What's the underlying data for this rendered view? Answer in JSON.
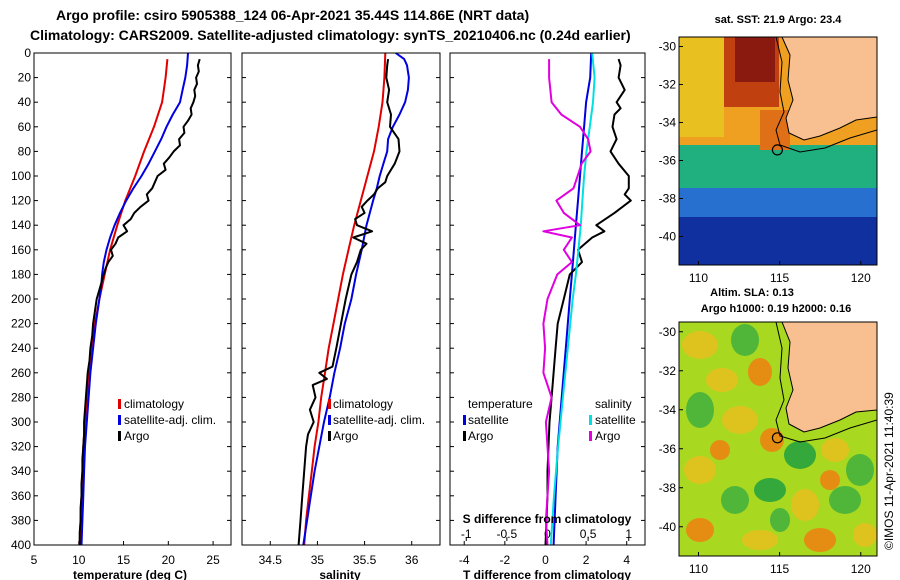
{
  "header": {
    "title_line1": "Argo profile: csiro 5905388_124 06-Apr-2021 35.44S 114.86E (NRT data)",
    "title_line2": "Climatology: CARS2009. Satellite-adjusted climatology: synTS_20210406.nc (0.24d earlier)"
  },
  "colors": {
    "climatology": "#e00000",
    "satellite": "#0000e0",
    "argo": "#000000",
    "satellite_s": "#00e0e0",
    "argo_s": "#e000e0",
    "land": "#f8c090"
  },
  "chart_data": [
    {
      "id": "temperature",
      "type": "line",
      "xlabel": "temperature (deg C)",
      "ylabel": "",
      "xlim": [
        5,
        27
      ],
      "ylim": [
        400,
        0
      ],
      "xticks": [
        "5",
        "10",
        "15",
        "20",
        "25"
      ],
      "xtick_values": [
        5,
        10,
        15,
        20,
        25
      ],
      "yticks": [
        "0",
        "20",
        "40",
        "60",
        "80",
        "100",
        "120",
        "140",
        "160",
        "180",
        "200",
        "220",
        "240",
        "260",
        "280",
        "300",
        "320",
        "340",
        "360",
        "380",
        "400"
      ],
      "ytick_values": [
        0,
        20,
        40,
        60,
        80,
        100,
        120,
        140,
        160,
        180,
        200,
        220,
        240,
        260,
        280,
        300,
        320,
        340,
        360,
        380,
        400
      ],
      "legend": [
        "climatology",
        "satellite-adj. clim.",
        "Argo"
      ],
      "series": [
        {
          "name": "climatology",
          "color": "#e00000",
          "depth": [
            5,
            20,
            40,
            60,
            80,
            100,
            120,
            140,
            160,
            180,
            200,
            220,
            240,
            260,
            280,
            300,
            320,
            340,
            360,
            380,
            400
          ],
          "values": [
            19.9,
            19.7,
            19.3,
            18.4,
            17.3,
            16.3,
            15.2,
            14.3,
            13.5,
            12.9,
            12.3,
            11.8,
            11.4,
            11.1,
            10.9,
            10.7,
            10.5,
            10.4,
            10.3,
            10.2,
            10.1
          ]
        },
        {
          "name": "satellite-adj. clim.",
          "color": "#0000e0",
          "depth": [
            0,
            10,
            20,
            30,
            40,
            50,
            60,
            70,
            80,
            90,
            100,
            110,
            120,
            130,
            140,
            150,
            160,
            170,
            180,
            190,
            200,
            220,
            240,
            260,
            280,
            300,
            320,
            340,
            360,
            380,
            400
          ],
          "values": [
            22.2,
            22.1,
            21.9,
            21.6,
            21.3,
            20.5,
            19.8,
            19.2,
            18.5,
            17.8,
            17.0,
            16.1,
            15.3,
            14.6,
            14.0,
            13.5,
            13.1,
            12.8,
            12.6,
            12.5,
            12.3,
            11.9,
            11.6,
            11.3,
            11.1,
            10.9,
            10.7,
            10.6,
            10.5,
            10.4,
            10.3
          ]
        },
        {
          "name": "Argo",
          "color": "#000000",
          "depth": [
            5,
            10,
            15,
            20,
            25,
            30,
            35,
            40,
            45,
            50,
            55,
            60,
            65,
            70,
            75,
            80,
            85,
            90,
            95,
            100,
            105,
            110,
            115,
            120,
            125,
            130,
            135,
            140,
            145,
            150,
            155,
            160,
            165,
            170,
            175,
            180,
            190,
            200,
            210,
            220,
            230,
            240,
            250,
            260,
            270,
            280,
            290,
            300,
            310,
            320,
            330,
            340,
            350,
            360,
            370,
            380,
            390,
            400
          ],
          "values": [
            23.5,
            23.3,
            23.4,
            23.1,
            23.2,
            22.9,
            23.0,
            22.8,
            22.5,
            22.6,
            22.2,
            21.7,
            21.8,
            21.2,
            21.3,
            20.6,
            20.1,
            19.5,
            19.7,
            18.8,
            18.5,
            18.2,
            17.6,
            17.8,
            16.9,
            16.2,
            15.8,
            15.0,
            15.4,
            14.4,
            14.1,
            13.6,
            13.8,
            13.3,
            13.0,
            12.8,
            12.4,
            12.0,
            11.8,
            11.6,
            11.5,
            11.3,
            11.2,
            11.0,
            10.9,
            10.8,
            10.7,
            10.6,
            10.6,
            10.5,
            10.4,
            10.4,
            10.3,
            10.3,
            10.2,
            10.2,
            10.1,
            10.1
          ]
        }
      ]
    },
    {
      "id": "salinity",
      "type": "line",
      "xlabel": "salinity",
      "ylabel": "",
      "xlim": [
        34.2,
        36.3
      ],
      "ylim": [
        400,
        0
      ],
      "xticks": [
        "34.5",
        "35",
        "35.5",
        "36"
      ],
      "xtick_values": [
        34.5,
        35,
        35.5,
        36
      ],
      "legend": [
        "climatology",
        "satellite-adj. clim.",
        "Argo"
      ],
      "series": [
        {
          "name": "climatology",
          "color": "#e00000",
          "depth": [
            0,
            20,
            40,
            60,
            80,
            100,
            120,
            140,
            160,
            180,
            200,
            220,
            240,
            260,
            280,
            300,
            320,
            340,
            360,
            380,
            400
          ],
          "values": [
            35.72,
            35.71,
            35.69,
            35.65,
            35.6,
            35.53,
            35.46,
            35.39,
            35.33,
            35.27,
            35.22,
            35.17,
            35.12,
            35.08,
            35.04,
            35.01,
            34.97,
            34.94,
            34.91,
            34.88,
            34.86
          ]
        },
        {
          "name": "satellite-adj. clim.",
          "color": "#0000e0",
          "depth": [
            0,
            5,
            10,
            20,
            30,
            40,
            50,
            60,
            70,
            80,
            90,
            100,
            110,
            120,
            140,
            160,
            180,
            200,
            220,
            240,
            260,
            280,
            300,
            320,
            340,
            360,
            380,
            400
          ],
          "values": [
            35.83,
            35.92,
            35.95,
            35.97,
            35.96,
            35.93,
            35.87,
            35.8,
            35.75,
            35.74,
            35.7,
            35.66,
            35.63,
            35.59,
            35.52,
            35.47,
            35.41,
            35.36,
            35.29,
            35.24,
            35.18,
            35.13,
            35.07,
            35.02,
            34.97,
            34.93,
            34.89,
            34.85
          ]
        },
        {
          "name": "Argo",
          "color": "#000000",
          "depth": [
            5,
            10,
            20,
            30,
            40,
            50,
            60,
            70,
            80,
            90,
            100,
            105,
            110,
            115,
            120,
            125,
            130,
            135,
            140,
            145,
            150,
            155,
            160,
            170,
            180,
            200,
            220,
            240,
            255,
            260,
            265,
            270,
            280,
            290,
            300,
            310,
            320,
            340,
            360,
            380,
            400
          ],
          "values": [
            35.75,
            35.74,
            35.73,
            35.76,
            35.74,
            35.78,
            35.77,
            35.86,
            35.87,
            35.82,
            35.74,
            35.72,
            35.64,
            35.6,
            35.53,
            35.47,
            35.5,
            35.4,
            35.42,
            35.58,
            35.38,
            35.52,
            35.46,
            35.42,
            35.36,
            35.3,
            35.25,
            35.2,
            35.16,
            35.02,
            35.1,
            34.95,
            34.98,
            34.92,
            34.96,
            34.9,
            34.88,
            34.86,
            34.84,
            34.82,
            34.8
          ]
        }
      ]
    },
    {
      "id": "difference",
      "type": "line",
      "xlabel": "T difference from climatology",
      "xlabel_top": "S difference from climatology",
      "xlim": [
        -4.7,
        4.9
      ],
      "xlim_top": [
        -1.2,
        1.2
      ],
      "ylim": [
        400,
        0
      ],
      "xticks": [
        "-4",
        "-2",
        "0",
        "2",
        "4"
      ],
      "xtick_values": [
        -4,
        -2,
        0,
        2,
        4
      ],
      "xticks_top": [
        "-1",
        "-0.5",
        "0",
        "0.5",
        "1"
      ],
      "xtick_values_top": [
        -1,
        -0.5,
        0,
        0.5,
        1
      ],
      "legend_left_title": "temperature",
      "legend_right_title": "salinity",
      "legend": [
        "satellite",
        "Argo"
      ],
      "series": [
        {
          "name": "temperature satellite",
          "color": "#0000e0",
          "axis": "bottom",
          "depth": [
            0,
            20,
            40,
            60,
            80,
            100,
            120,
            140,
            160,
            180,
            200,
            240,
            280,
            320,
            360,
            400
          ],
          "values": [
            2.25,
            2.2,
            2.0,
            1.9,
            1.8,
            1.7,
            1.6,
            1.5,
            1.4,
            1.3,
            1.2,
            1.0,
            0.8,
            0.6,
            0.5,
            0.4
          ]
        },
        {
          "name": "temperature Argo",
          "color": "#000000",
          "axis": "bottom",
          "depth": [
            5,
            10,
            20,
            30,
            40,
            45,
            50,
            60,
            70,
            80,
            90,
            100,
            110,
            115,
            120,
            130,
            140,
            145,
            150,
            160,
            170,
            180,
            200,
            220,
            240,
            260,
            280,
            300,
            320,
            340,
            360,
            380,
            400
          ],
          "values": [
            3.6,
            3.7,
            3.6,
            3.9,
            3.5,
            3.7,
            3.4,
            3.3,
            3.5,
            3.2,
            3.6,
            4.1,
            4.1,
            3.9,
            4.2,
            3.4,
            2.5,
            2.9,
            2.3,
            1.6,
            1.8,
            1.2,
            0.9,
            0.6,
            0.5,
            0.4,
            0.3,
            0.2,
            0.15,
            0.1,
            0.1,
            0.05,
            0.0
          ]
        },
        {
          "name": "salinity satellite",
          "color": "#00e0e0",
          "axis": "top",
          "depth": [
            0,
            20,
            40,
            60,
            80,
            100,
            120,
            140,
            160,
            180,
            200,
            240,
            280,
            320,
            360,
            400
          ],
          "values": [
            0.55,
            0.58,
            0.56,
            0.52,
            0.48,
            0.45,
            0.43,
            0.41,
            0.38,
            0.35,
            0.31,
            0.25,
            0.19,
            0.13,
            0.08,
            0.04
          ]
        },
        {
          "name": "salinity Argo",
          "color": "#e000e0",
          "axis": "top",
          "depth": [
            5,
            20,
            40,
            50,
            60,
            70,
            80,
            90,
            100,
            110,
            120,
            130,
            140,
            145,
            150,
            160,
            170,
            180,
            200,
            220,
            240,
            260,
            280,
            300,
            320,
            340,
            360,
            380,
            400
          ],
          "values": [
            0.02,
            0.02,
            0.05,
            0.17,
            0.4,
            0.5,
            0.53,
            0.42,
            0.37,
            0.32,
            0.11,
            0.2,
            0.4,
            -0.05,
            0.3,
            0.2,
            0.3,
            0.12,
            0.0,
            -0.05,
            -0.03,
            -0.05,
            0.05,
            -0.02,
            0.0,
            0.02,
            0.0,
            -0.02,
            0.0
          ]
        }
      ]
    },
    {
      "id": "sst-map",
      "type": "heatmap",
      "title": "sat. SST: 21.9 Argo: 23.4",
      "xlim": [
        108.8,
        121
      ],
      "ylim": [
        -41.5,
        -29.5
      ],
      "xticks": [
        "110",
        "115",
        "120"
      ],
      "xtick_values": [
        110,
        115,
        120
      ],
      "yticks": [
        "-30",
        "-32",
        "-34",
        "-36",
        "-38",
        "-40"
      ],
      "ytick_values": [
        -30,
        -32,
        -34,
        -36,
        -38,
        -40
      ],
      "marker": [
        114.86,
        -35.44
      ]
    },
    {
      "id": "sla-map",
      "type": "heatmap",
      "title_line1": "Altim. SLA: 0.13",
      "title_line2": "Argo h1000: 0.19 h2000: 0.16",
      "xlim": [
        108.8,
        121
      ],
      "ylim": [
        -41.5,
        -29.5
      ],
      "xticks": [
        "110",
        "115",
        "120"
      ],
      "xtick_values": [
        110,
        115,
        120
      ],
      "yticks": [
        "-30",
        "-32",
        "-34",
        "-36",
        "-38",
        "-40"
      ],
      "ytick_values": [
        -30,
        -32,
        -34,
        -36,
        -38,
        -40
      ],
      "marker": [
        114.86,
        -35.44
      ]
    }
  ],
  "footer": {
    "credit": "©IMOS 11-Apr-2021 11:40:39"
  }
}
